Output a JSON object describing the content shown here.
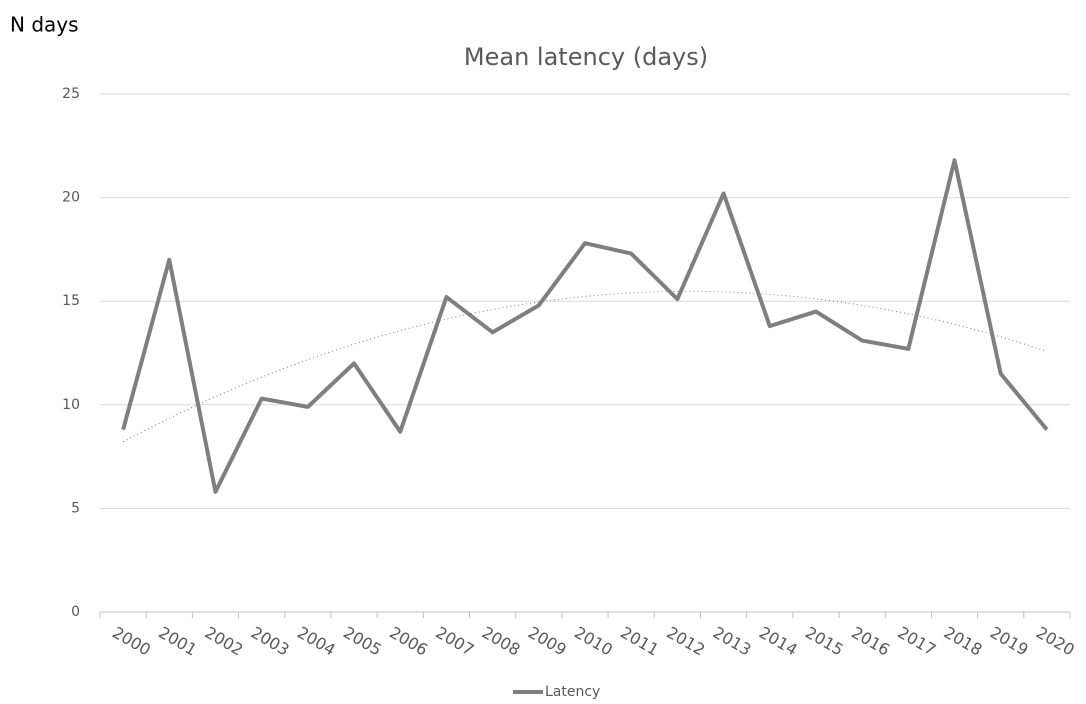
{
  "chart_data": {
    "type": "line",
    "title": "Mean latency (days)",
    "y_label": "N days",
    "categories": [
      "2000",
      "2001",
      "2002",
      "2003",
      "2004",
      "2005",
      "2006",
      "2007",
      "2008",
      "2009",
      "2010",
      "2011",
      "2012",
      "2013",
      "2014",
      "2015",
      "2016",
      "2017",
      "2018",
      "2019",
      "2020"
    ],
    "series": [
      {
        "name": "Latency",
        "color": "#7f7f7f",
        "values": [
          8.8,
          17.0,
          5.8,
          10.3,
          9.9,
          12.0,
          8.7,
          15.2,
          13.5,
          14.8,
          17.8,
          17.3,
          15.1,
          20.2,
          13.8,
          14.5,
          13.1,
          12.7,
          21.8,
          11.5,
          8.8
        ]
      }
    ],
    "ylim": [
      0,
      25
    ],
    "yticks": [
      0,
      5,
      10,
      15,
      20,
      25
    ],
    "grid": true,
    "trendline": "polynomial",
    "legend": "bottom"
  }
}
